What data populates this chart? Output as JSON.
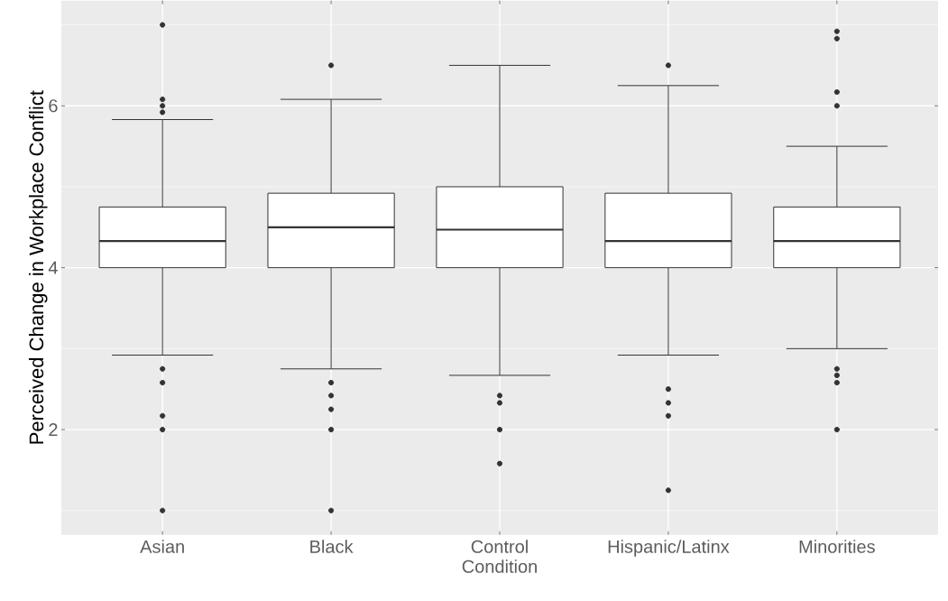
{
  "chart_data": {
    "type": "box",
    "ylabel": "Perceived Change in Workplace Conflict",
    "categories": [
      "Asian",
      "Black",
      "Control Condition",
      "Hispanic/Latinx",
      "Minorities"
    ],
    "boxes": [
      {
        "low": 2.92,
        "q1": 4.0,
        "median": 4.33,
        "q3": 4.75,
        "high": 5.83,
        "outliers": [
          7.0,
          6.08,
          6.0,
          5.92,
          2.75,
          2.58,
          2.17,
          2.0,
          1.0
        ]
      },
      {
        "low": 2.75,
        "q1": 4.0,
        "median": 4.5,
        "q3": 4.92,
        "high": 6.08,
        "outliers": [
          6.5,
          2.58,
          2.42,
          2.25,
          2.0,
          1.0
        ]
      },
      {
        "low": 2.67,
        "q1": 4.0,
        "median": 4.47,
        "q3": 5.0,
        "high": 6.5,
        "outliers": [
          2.42,
          2.33,
          2.0,
          1.58
        ]
      },
      {
        "low": 2.92,
        "q1": 4.0,
        "median": 4.33,
        "q3": 4.92,
        "high": 6.25,
        "outliers": [
          6.5,
          2.5,
          2.33,
          2.17,
          1.25
        ]
      },
      {
        "low": 3.0,
        "q1": 4.0,
        "median": 4.33,
        "q3": 4.75,
        "high": 5.5,
        "outliers": [
          6.92,
          6.83,
          6.17,
          6.0,
          2.75,
          2.67,
          2.58,
          2.0
        ]
      }
    ],
    "color": "#ffffff",
    "ylim": [
      0.7,
      7.3
    ],
    "yticks": [
      2,
      4,
      6
    ],
    "grid": true
  }
}
